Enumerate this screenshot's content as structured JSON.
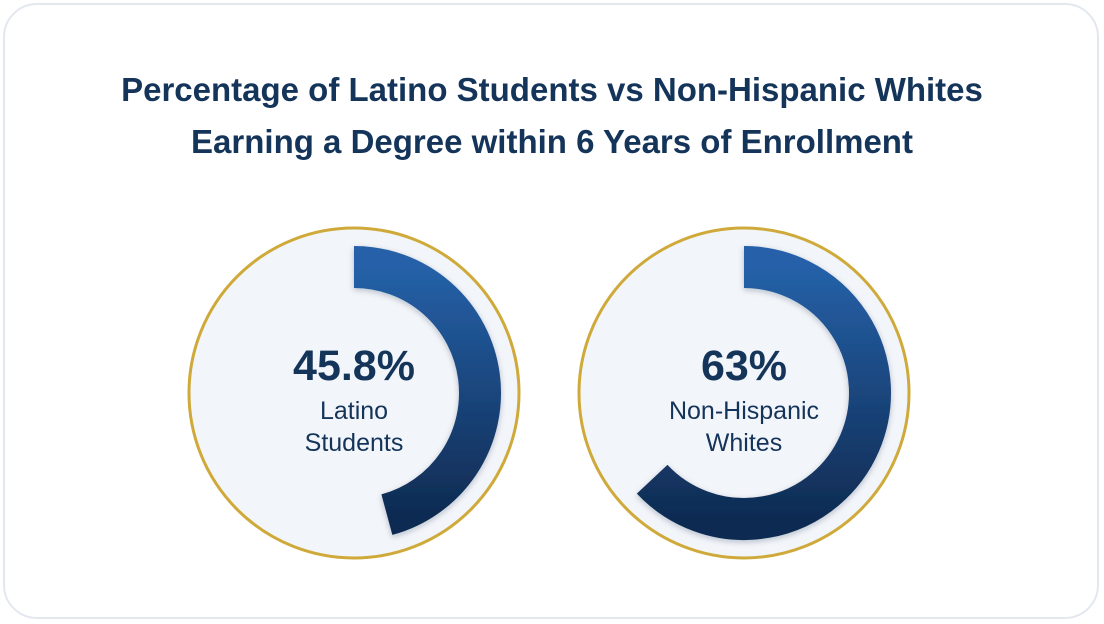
{
  "title_line1": "Percentage of Latino Students vs Non-Hispanic Whites",
  "title_line2": "Earning a Degree within 6 Years of Enrollment",
  "colors": {
    "ring_border": "#cfaa3a",
    "circle_fill": "#f2f5f9",
    "arc_top": "#2561a8",
    "arc_bottom": "#0f2b52",
    "text": "#14345a"
  },
  "chart_data": {
    "type": "pie",
    "charts": [
      {
        "value": 45.8,
        "value_label": "45.8%",
        "label_lines": [
          "Latino",
          "Students"
        ]
      },
      {
        "value": 63,
        "value_label": "63%",
        "label_lines": [
          "Non-Hispanic",
          "Whites"
        ]
      }
    ]
  }
}
